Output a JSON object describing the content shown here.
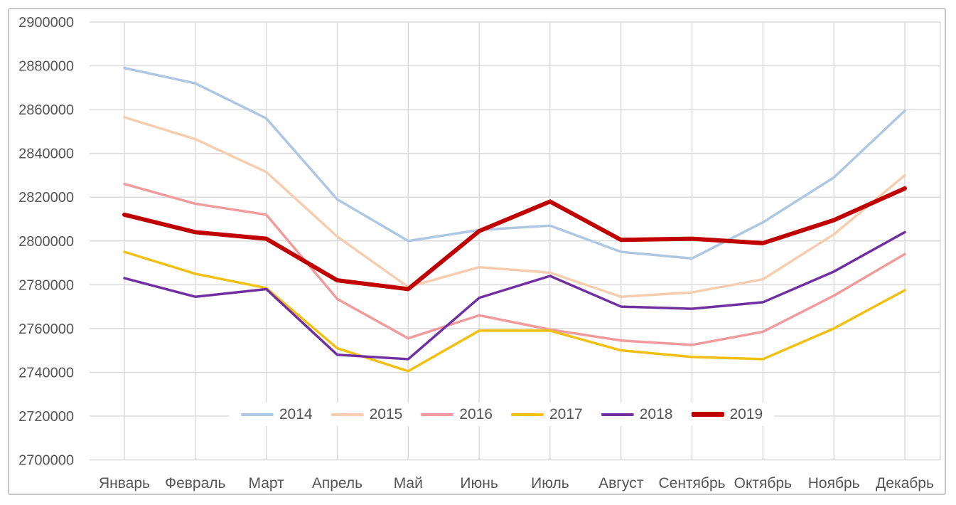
{
  "chart_data": {
    "type": "line",
    "title": "",
    "xlabel": "",
    "ylabel": "",
    "categories": [
      "Январь",
      "Февраль",
      "Март",
      "Апрель",
      "Май",
      "Июнь",
      "Июль",
      "Август",
      "Сентябрь",
      "Октябрь",
      "Ноябрь",
      "Декабрь"
    ],
    "series": [
      {
        "name": "2014",
        "color": "#AEC7E3",
        "line_width": 3.5,
        "values": [
          2879000,
          2872000,
          2856000,
          2819000,
          2800000,
          2805000,
          2807000,
          2795000,
          2792000,
          2808500,
          2829000,
          2859500
        ]
      },
      {
        "name": "2015",
        "color": "#F6CDAE",
        "line_width": 3.5,
        "values": [
          2856500,
          2846500,
          2831500,
          2802000,
          2779000,
          2788000,
          2785500,
          2774500,
          2776500,
          2782500,
          2803000,
          2830000
        ]
      },
      {
        "name": "2016",
        "color": "#F19B9C",
        "line_width": 3.5,
        "values": [
          2826000,
          2817000,
          2812000,
          2773500,
          2755500,
          2766000,
          2759500,
          2754500,
          2752500,
          2758500,
          2775000,
          2794000
        ]
      },
      {
        "name": "2017",
        "color": "#F2C011",
        "line_width": 3.5,
        "values": [
          2795000,
          2785000,
          2778500,
          2751000,
          2740500,
          2759000,
          2759000,
          2750000,
          2747000,
          2746000,
          2760000,
          2777500
        ]
      },
      {
        "name": "2018",
        "color": "#7030A0",
        "line_width": 3.5,
        "values": [
          2783000,
          2774500,
          2778000,
          2748000,
          2746000,
          2774000,
          2784000,
          2770000,
          2769000,
          2772000,
          2786000,
          2804000
        ]
      },
      {
        "name": "2019",
        "color": "#C00000",
        "line_width": 6,
        "values": [
          2812000,
          2804000,
          2801000,
          2782000,
          2778000,
          2804500,
          2818000,
          2800500,
          2801000,
          2799000,
          2809500,
          2824000
        ]
      }
    ],
    "y_axis": {
      "min": 2700000,
      "max": 2900000,
      "step": 20000,
      "tick_labels": [
        "2900000",
        "2880000",
        "2860000",
        "2840000",
        "2820000",
        "2800000",
        "2780000",
        "2760000",
        "2740000",
        "2720000",
        "2700000"
      ]
    },
    "ylim": [
      2700000,
      2900000
    ],
    "grid": true,
    "legend_position": "bottom-center-overlay"
  },
  "colors": {
    "background": "#FFFFFF",
    "grid": "#D9D9D9",
    "axis_text": "#555555",
    "frame_border": "#C7C7C7"
  }
}
